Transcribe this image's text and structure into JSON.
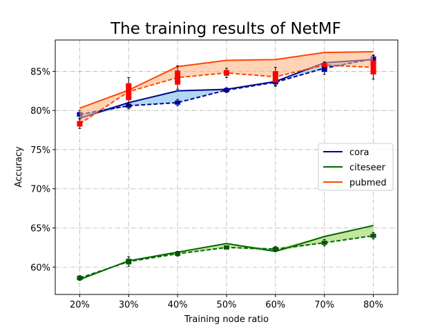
{
  "chart_data": {
    "type": "line",
    "title": "The training results of NetMF",
    "xlabel": "Training node ratio",
    "ylabel": "Accuracy",
    "categories": [
      "20%",
      "30%",
      "40%",
      "50%",
      "60%",
      "70%",
      "80%"
    ],
    "x": [
      20,
      30,
      40,
      50,
      60,
      70,
      80
    ],
    "ylim": [
      56.5,
      89.0
    ],
    "yticks": [
      60,
      65,
      70,
      75,
      80,
      85
    ],
    "ytick_labels": [
      "60%",
      "65%",
      "70%",
      "75%",
      "80%",
      "85%"
    ],
    "grid": true,
    "legend_position": "center-right",
    "series": [
      {
        "name": "cora",
        "color": "#00008b",
        "band_color": "#6fb7ea",
        "solid": [
          79.0,
          81.0,
          82.5,
          82.7,
          83.7,
          86.1,
          86.5
        ],
        "dashed": [
          79.5,
          80.6,
          81.0,
          82.6,
          83.6,
          85.4,
          86.6
        ],
        "err": [
          0.5,
          0.4,
          0.4,
          0.3,
          0.4,
          0.8,
          0.5
        ],
        "marker_color": "#0000a0"
      },
      {
        "name": "citeseer",
        "color": "#006400",
        "band_color": "#8fd14f",
        "solid": [
          58.4,
          60.8,
          61.9,
          63.0,
          62.0,
          63.9,
          65.3
        ],
        "dashed": [
          58.6,
          60.7,
          61.7,
          62.5,
          62.3,
          63.1,
          64.0
        ],
        "err": [
          0.3,
          0.6,
          0.3,
          0.2,
          0.3,
          0.4,
          0.4
        ],
        "marker_color": "#005a00"
      },
      {
        "name": "pubmed",
        "color": "#ff4500",
        "band_color": "#ffb07a",
        "solid": [
          80.3,
          82.6,
          85.6,
          86.4,
          86.5,
          87.4,
          87.5
        ],
        "dashed": [
          78.3,
          82.4,
          84.2,
          84.8,
          84.3,
          85.8,
          85.5
        ],
        "err": [
          0.6,
          1.8,
          1.5,
          0.6,
          1.2,
          0.4,
          1.5
        ],
        "marker_color": "#ff0000"
      }
    ]
  }
}
